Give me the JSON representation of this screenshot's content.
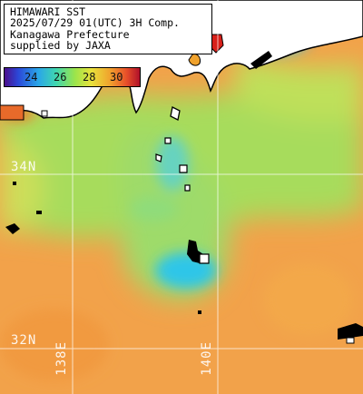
{
  "title": {
    "line1": "HIMAWARI SST",
    "line2": "2025/07/29 01(UTC) 3H Comp.",
    "line3": "Kanagawa Prefecture",
    "line4": "supplied by JAXA"
  },
  "color_scale": {
    "labels": [
      "24",
      "26",
      "28",
      "30"
    ],
    "colors": [
      "#4b0f8c",
      "#2b47d8",
      "#2aa6e8",
      "#3fd6b0",
      "#9be44b",
      "#e8e23c",
      "#f0a22d",
      "#e8502a",
      "#b0102a"
    ]
  },
  "grid_labels": {
    "lat_34": "34N",
    "lat_32": "32N",
    "lon_138": "138E",
    "lon_140": "140E"
  },
  "colors": {
    "warm_sea": "#f2a24a",
    "mid_sea": "#9fdc5a",
    "cool_sea": "#2ec6e8",
    "land": "#ffffff",
    "coast": "#000000",
    "grid": "#ffffff"
  }
}
